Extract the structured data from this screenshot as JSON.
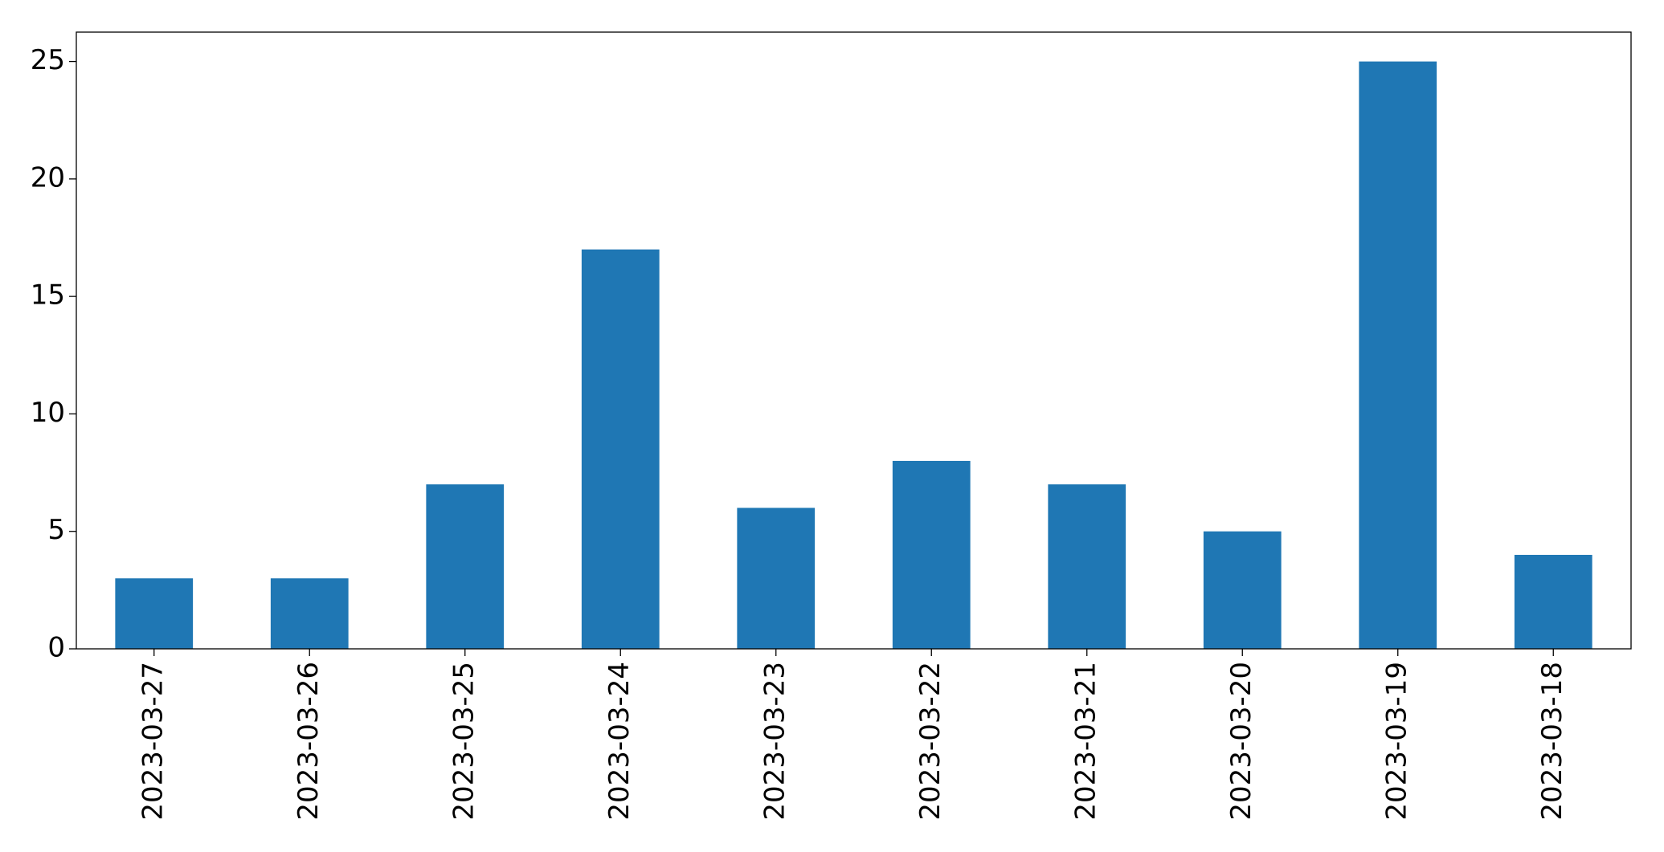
{
  "chart_data": {
    "type": "bar",
    "categories": [
      "2023-03-27",
      "2023-03-26",
      "2023-03-25",
      "2023-03-24",
      "2023-03-23",
      "2023-03-22",
      "2023-03-21",
      "2023-03-20",
      "2023-03-19",
      "2023-03-18"
    ],
    "values": [
      3,
      3,
      7,
      17,
      6,
      8,
      7,
      5,
      25,
      4
    ],
    "color": "#1f77b4",
    "ylim": [
      0,
      26.25
    ],
    "yticks": [
      0,
      5,
      10,
      15,
      20,
      25
    ],
    "grid": false
  }
}
